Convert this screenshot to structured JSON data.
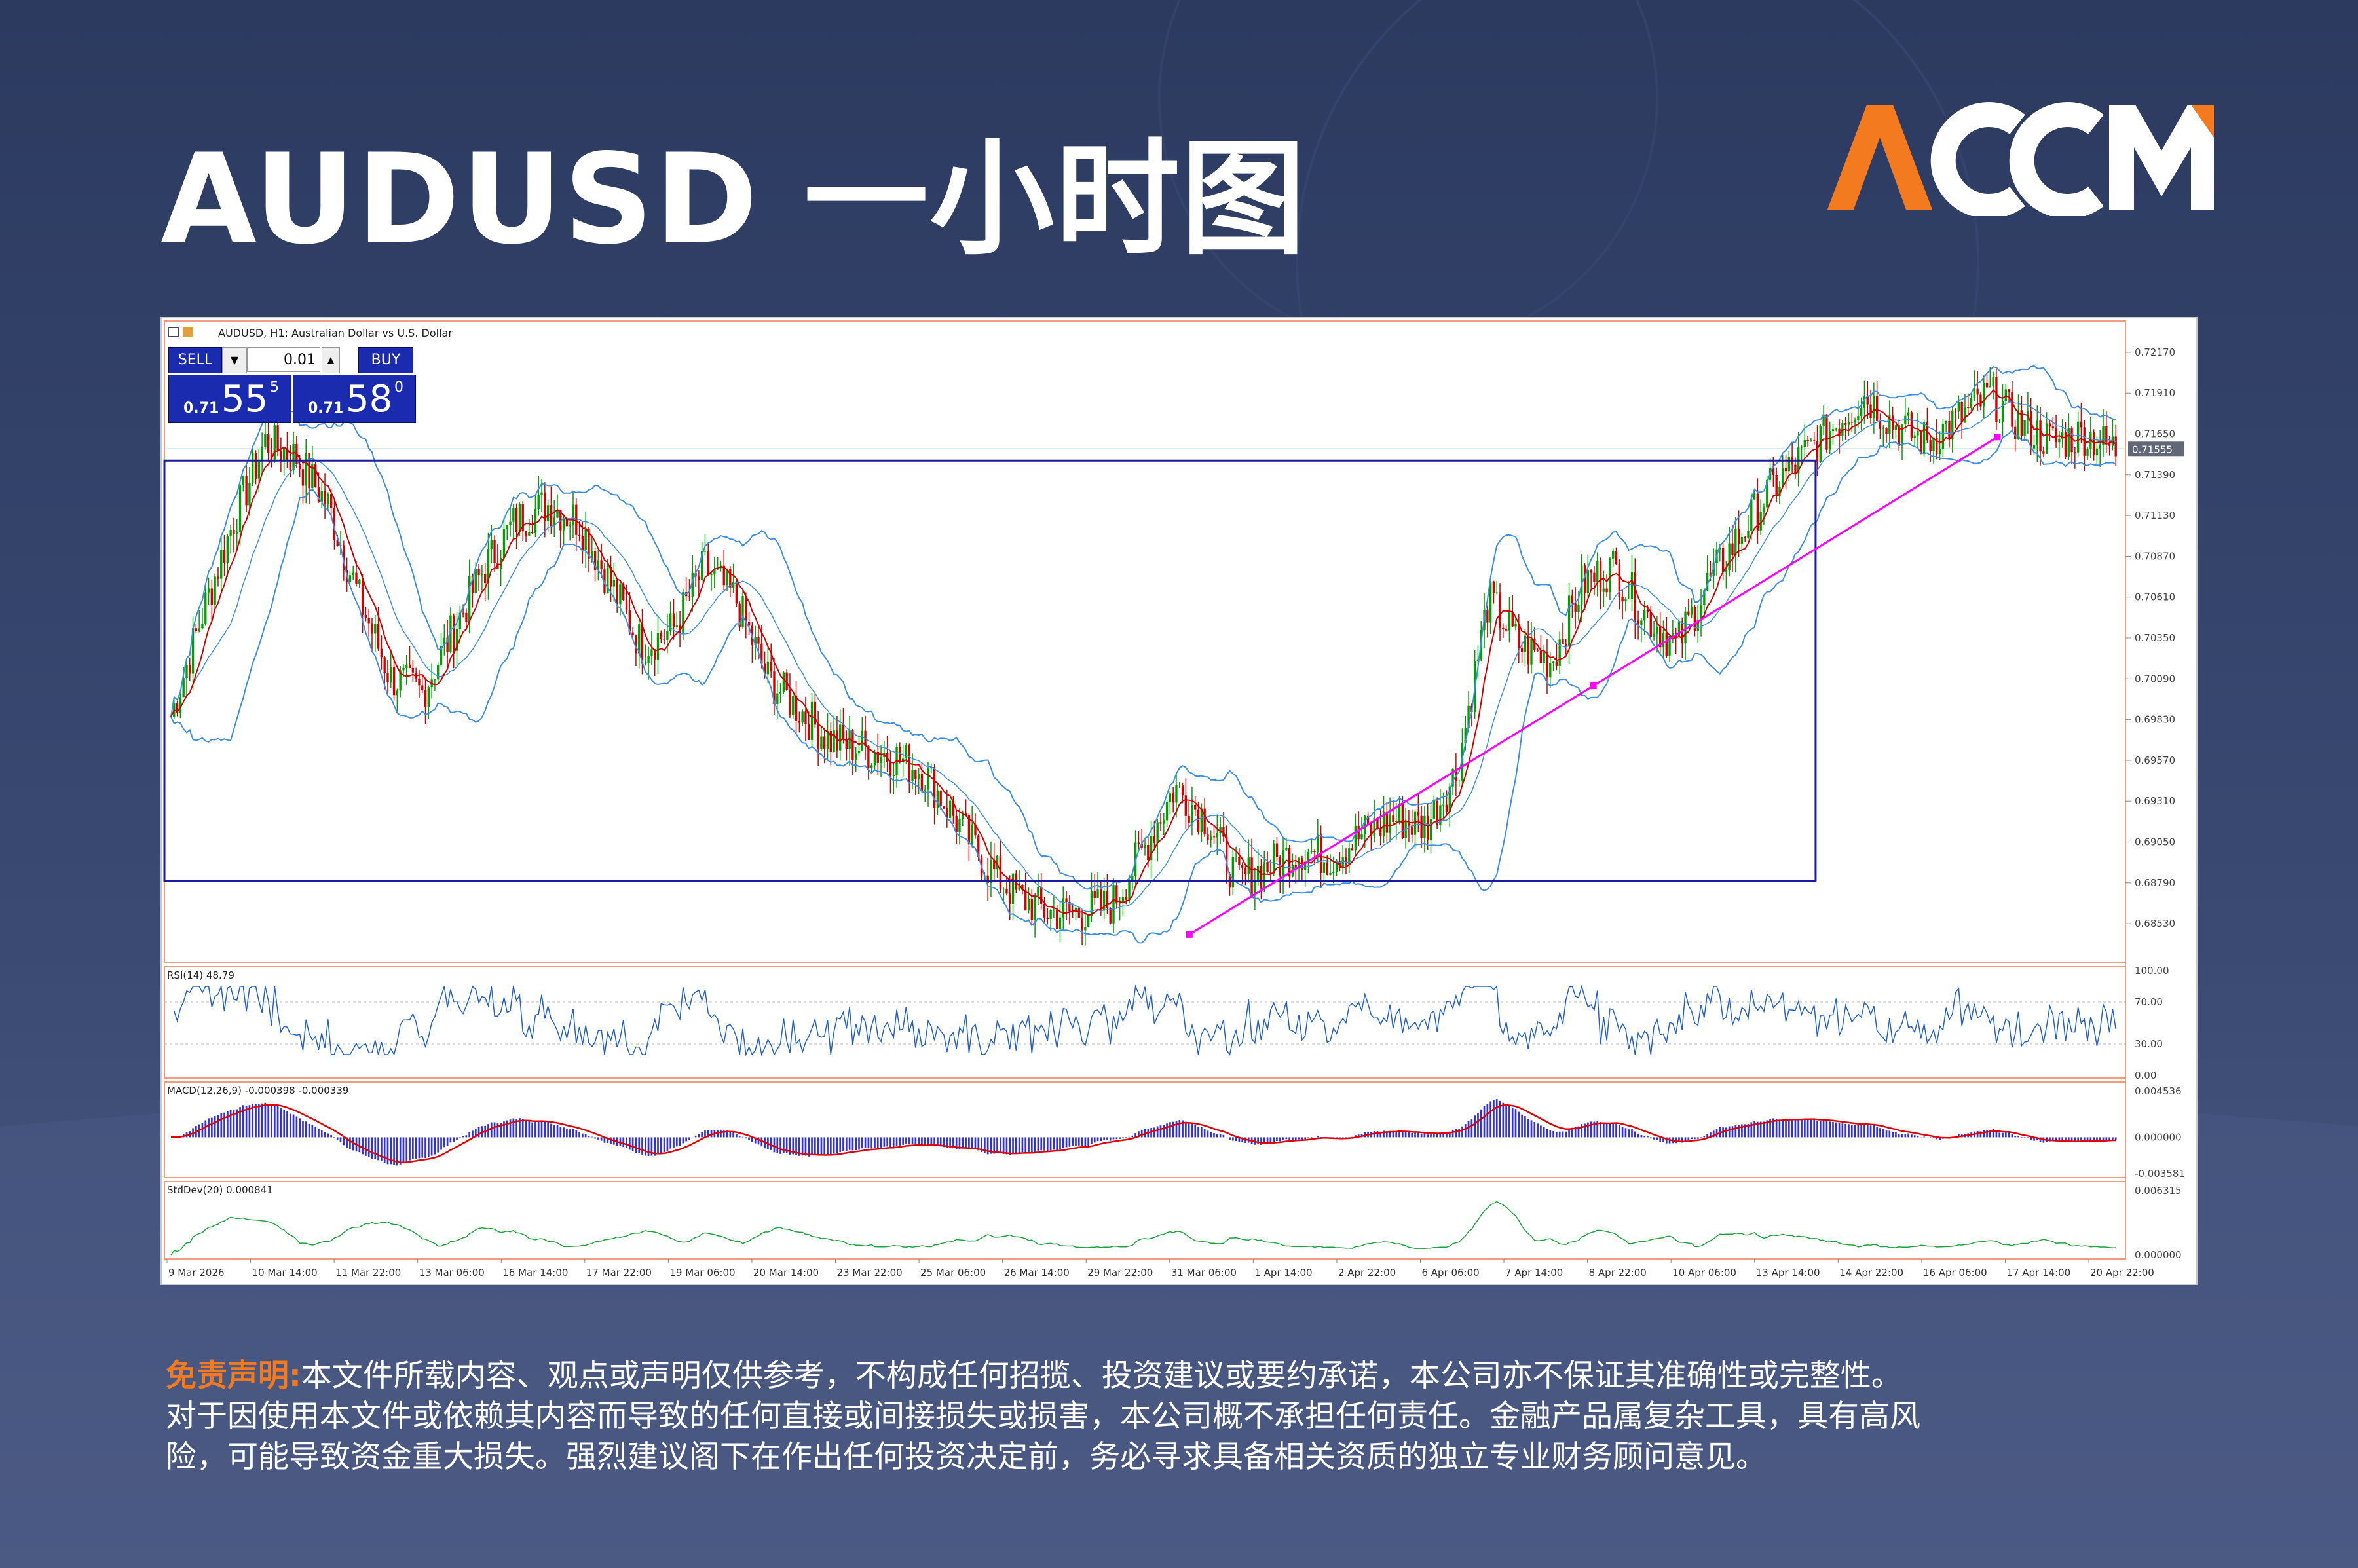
{
  "header": {
    "title": "AUDUSD 一小时图",
    "logo": "ACCM",
    "logo_color": "#f47a20"
  },
  "chart_window": {
    "symbol_line": "AUDUSD, H1:  Australian Dollar vs U.S. Dollar",
    "trade_panel": {
      "sell_label": "SELL",
      "buy_label": "BUY",
      "lot": "0.01",
      "sell_price_small": "0.71",
      "sell_price_big": "55",
      "sell_price_sup": "5",
      "buy_price_small": "0.71",
      "buy_price_big": "58",
      "buy_price_sup": "0"
    },
    "current_price_label": "0.71555",
    "indicator_labels": {
      "rsi": "RSI(14) 48.79",
      "macd": "MACD(12,26,9) -0.000398 -0.000339",
      "stddev": "StdDev(20) 0.000841"
    }
  },
  "chart_data": [
    {
      "type": "candlestick",
      "title": "AUDUSD, H1:  Australian Dollar vs U.S. Dollar",
      "price_ticks": [
        "0.72170",
        "0.71910",
        "0.71650",
        "0.71390",
        "0.71130",
        "0.70870",
        "0.70610",
        "0.70350",
        "0.70090",
        "0.69830",
        "0.69570",
        "0.69310",
        "0.69050",
        "0.68790",
        "0.68530"
      ],
      "ylim": [
        0.6828,
        0.7237
      ],
      "date_ticks": [
        "9 Mar 2026",
        "10 Mar 14:00",
        "11 Mar 22:00",
        "13 Mar 06:00",
        "16 Mar 14:00",
        "17 Mar 22:00",
        "19 Mar 06:00",
        "20 Mar 14:00",
        "23 Mar 22:00",
        "25 Mar 06:00",
        "26 Mar 14:00",
        "29 Mar 22:00",
        "31 Mar 06:00",
        "1 Apr 14:00",
        "2 Apr 22:00",
        "6 Apr 06:00",
        "7 Apr 14:00",
        "8 Apr 22:00",
        "10 Apr 06:00",
        "13 Apr 14:00",
        "14 Apr 22:00",
        "16 Apr 06:00",
        "17 Apr 14:00",
        "20 Apr 22:00"
      ],
      "close_path": [
        0.6985,
        0.705,
        0.711,
        0.716,
        0.715,
        0.712,
        0.706,
        0.701,
        0.7,
        0.704,
        0.708,
        0.711,
        0.712,
        0.711,
        0.707,
        0.703,
        0.704,
        0.708,
        0.706,
        0.701,
        0.699,
        0.697,
        0.6965,
        0.696,
        0.695,
        0.692,
        0.689,
        0.687,
        0.686,
        0.686,
        0.6865,
        0.69,
        0.694,
        0.692,
        0.688,
        0.689,
        0.69,
        0.6895,
        0.691,
        0.692,
        0.6915,
        0.695,
        0.706,
        0.703,
        0.702,
        0.707,
        0.708,
        0.705,
        0.703,
        0.707,
        0.71,
        0.713,
        0.715,
        0.717,
        0.719,
        0.717,
        0.716,
        0.7175,
        0.719,
        0.717,
        0.716,
        0.7165,
        0.7155
      ],
      "box_range": [
        0.688,
        0.7148
      ],
      "trendline": [
        {
          "date": "31 Mar 06:00",
          "price": 0.6846
        },
        {
          "date": "17 Apr 14:00",
          "price": 0.7163
        }
      ],
      "overlays": [
        "Bollinger Bands",
        "Moving Average"
      ],
      "series_colors": {
        "bull": "#00a000",
        "bear": "#d40000",
        "bands": "#3c8ee0",
        "ma": "#d00000",
        "box": "#1a1aa0",
        "trendline": "#ff00ff"
      }
    },
    {
      "type": "line",
      "title": "RSI(14) 48.79",
      "yticks": [
        "100.00",
        "70.00",
        "30.00",
        "0.00"
      ],
      "ylim": [
        0,
        100
      ],
      "levels": [
        70,
        30
      ],
      "last_value": 48.79
    },
    {
      "type": "bar",
      "title": "MACD(12,26,9) -0.000398 -0.000339",
      "yticks": [
        "0.004536",
        "0.000000",
        "-0.003581"
      ],
      "ylim": [
        -0.003581,
        0.004536
      ]
    },
    {
      "type": "line",
      "title": "StdDev(20) 0.000841",
      "yticks": [
        "0.006315",
        "0.000000"
      ],
      "ylim": [
        0,
        0.006315
      ]
    }
  ],
  "disclaimer": {
    "label": "免责声明:",
    "line1": "本文件所载内容、观点或声明仅供参考，不构成任何招揽、投资建议或要约承诺，本公司亦不保证其准确性或完整性。",
    "line2": "对于因使用本文件或依赖其内容而导致的任何直接或间接损失或损害，本公司概不承担任何责任。金融产品属复杂工具，具有高风",
    "line3": "险，可能导致资金重大损失。强烈建议阁下在作出任何投资决定前，务必寻求具备相关资质的独立专业财务顾问意见。"
  }
}
